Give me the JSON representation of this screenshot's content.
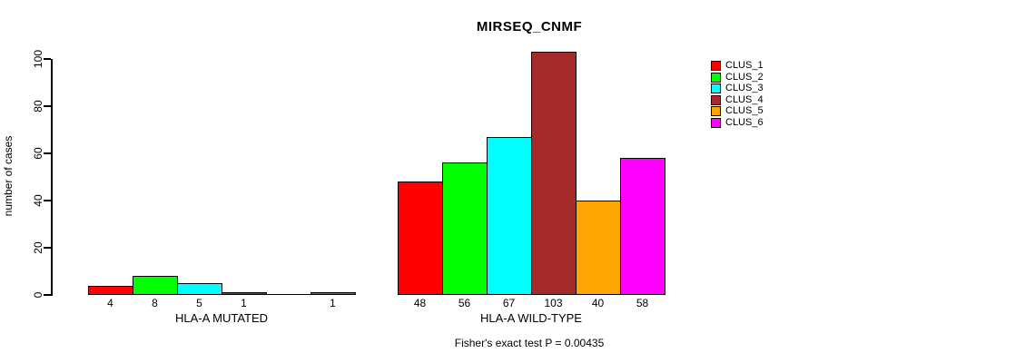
{
  "chart_data": {
    "type": "bar",
    "title": "MIRSEQ_CNMF",
    "ylabel": "number of cases",
    "ylim": [
      0,
      100
    ],
    "yticks": [
      0,
      20,
      40,
      60,
      80,
      100
    ],
    "grid": false,
    "legend_position": "right",
    "series": [
      {
        "name": "CLUS_1",
        "color": "#FF0000"
      },
      {
        "name": "CLUS_2",
        "color": "#00FF00"
      },
      {
        "name": "CLUS_3",
        "color": "#00FFFF"
      },
      {
        "name": "CLUS_4",
        "color": "#A52A2A"
      },
      {
        "name": "CLUS_5",
        "color": "#FFA500"
      },
      {
        "name": "CLUS_6",
        "color": "#FF00FF"
      }
    ],
    "groups": [
      {
        "label": "HLA-A MUTATED",
        "values": [
          4,
          8,
          5,
          1,
          0,
          1
        ],
        "bar_labels": [
          "4",
          "8",
          "5",
          "1",
          "",
          "1"
        ]
      },
      {
        "label": "HLA-A WILD-TYPE",
        "values": [
          48,
          56,
          67,
          103,
          40,
          58
        ],
        "bar_labels": [
          "48",
          "56",
          "67",
          "103",
          "40",
          "58"
        ]
      }
    ],
    "footnote": "Fisher's exact test P = 0.00435"
  }
}
